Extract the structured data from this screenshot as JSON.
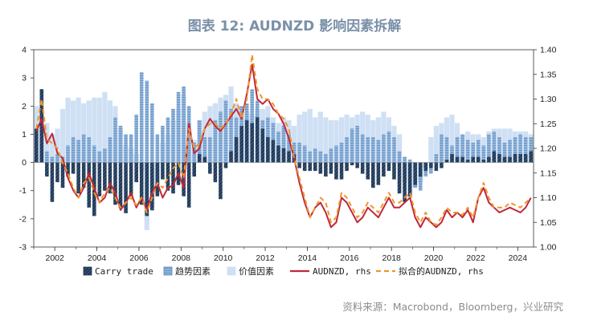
{
  "title": "图表 12: AUDNZD 影响因素拆解",
  "source": "资料来源：Macrobond，Bloomberg，兴业研究",
  "chart_data": {
    "type": "bar",
    "x_ticks": [
      "2002",
      "2004",
      "2006",
      "2008",
      "2010",
      "2012",
      "2014",
      "2016",
      "2018",
      "2020",
      "2022",
      "2024"
    ],
    "x_range": [
      2001.0,
      2024.75
    ],
    "y_left": {
      "range": [
        -3,
        4
      ],
      "ticks": [
        "-3",
        "-2",
        "-1",
        "0",
        "1",
        "2",
        "3",
        "4"
      ]
    },
    "y_right": {
      "range": [
        1.0,
        1.4
      ],
      "ticks": [
        "1.00",
        "1.05",
        "1.10",
        "1.15",
        "1.20",
        "1.25",
        "1.30",
        "1.35",
        "1.40"
      ]
    },
    "legend_position": "bottom",
    "colors": {
      "carry": "#1f3857",
      "trend": "#8eb4dc",
      "value": "#cfe0f4",
      "audnzd": "#c0283a",
      "fitted": "#f0962d"
    },
    "series": [
      {
        "name": "Carry trade",
        "type": "bar",
        "axis": "left",
        "x": [
          2001.0,
          2001.25,
          2001.5,
          2001.75,
          2002.0,
          2002.25,
          2002.5,
          2002.75,
          2003.0,
          2003.25,
          2003.5,
          2003.75,
          2004.0,
          2004.25,
          2004.5,
          2004.75,
          2005.0,
          2005.25,
          2005.5,
          2005.75,
          2006.0,
          2006.25,
          2006.5,
          2006.75,
          2007.0,
          2007.25,
          2007.5,
          2007.75,
          2008.0,
          2008.25,
          2008.5,
          2008.75,
          2009.0,
          2009.25,
          2009.5,
          2009.75,
          2010.0,
          2010.25,
          2010.5,
          2010.75,
          2011.0,
          2011.25,
          2011.5,
          2011.75,
          2012.0,
          2012.25,
          2012.5,
          2012.75,
          2013.0,
          2013.25,
          2013.5,
          2013.75,
          2014.0,
          2014.25,
          2014.5,
          2014.75,
          2015.0,
          2015.25,
          2015.5,
          2015.75,
          2016.0,
          2016.25,
          2016.5,
          2016.75,
          2017.0,
          2017.25,
          2017.5,
          2017.75,
          2018.0,
          2018.25,
          2018.5,
          2018.75,
          2019.0,
          2019.25,
          2019.5,
          2019.75,
          2020.0,
          2020.25,
          2020.5,
          2020.75,
          2021.0,
          2021.25,
          2021.5,
          2021.75,
          2022.0,
          2022.25,
          2022.5,
          2022.75,
          2023.0,
          2023.25,
          2023.5,
          2023.75,
          2024.0,
          2024.25,
          2024.5
        ],
        "values": [
          1.2,
          2.6,
          -0.5,
          -1.4,
          -0.7,
          -0.9,
          -0.5,
          -0.4,
          -1.1,
          -0.9,
          -1.6,
          -1.9,
          -1.2,
          -1.0,
          -1.1,
          -1.5,
          -1.6,
          -1.8,
          -1.2,
          -0.7,
          -1.5,
          -1.9,
          -1.7,
          -1.2,
          -0.6,
          -1.0,
          -1.1,
          -0.8,
          -1.2,
          -1.6,
          -0.5,
          0.3,
          0.2,
          -0.4,
          -0.7,
          -1.3,
          -0.2,
          0.4,
          0.9,
          1.3,
          1.5,
          1.4,
          1.6,
          1.2,
          0.9,
          0.8,
          0.6,
          0.5,
          0.4,
          0.3,
          -0.2,
          -0.3,
          -0.3,
          -0.3,
          -0.4,
          -0.5,
          -0.4,
          -0.6,
          -0.6,
          -0.3,
          -0.1,
          -0.2,
          -0.4,
          -0.6,
          -0.9,
          -0.8,
          -0.5,
          -0.3,
          -0.6,
          -1.1,
          -1.4,
          -1.2,
          -0.8,
          -0.5,
          -0.3,
          -0.2,
          -0.3,
          -0.2,
          0.1,
          0.3,
          0.2,
          0.2,
          0.1,
          0.2,
          0.2,
          0.1,
          0.2,
          0.4,
          0.3,
          0.2,
          0.2,
          0.3,
          0.3,
          0.3,
          0.4
        ]
      },
      {
        "name": "趋势因素",
        "type": "bar",
        "axis": "left",
        "x": [
          2001.0,
          2001.25,
          2001.5,
          2001.75,
          2002.0,
          2002.25,
          2002.5,
          2002.75,
          2003.0,
          2003.25,
          2003.5,
          2003.75,
          2004.0,
          2004.25,
          2004.5,
          2004.75,
          2005.0,
          2005.25,
          2005.5,
          2005.75,
          2006.0,
          2006.25,
          2006.5,
          2006.75,
          2007.0,
          2007.25,
          2007.5,
          2007.75,
          2008.0,
          2008.25,
          2008.5,
          2008.75,
          2009.0,
          2009.25,
          2009.5,
          2009.75,
          2010.0,
          2010.25,
          2010.5,
          2010.75,
          2011.0,
          2011.25,
          2011.5,
          2011.75,
          2012.0,
          2012.25,
          2012.5,
          2012.75,
          2013.0,
          2013.25,
          2013.5,
          2013.75,
          2014.0,
          2014.25,
          2014.5,
          2014.75,
          2015.0,
          2015.25,
          2015.5,
          2015.75,
          2016.0,
          2016.25,
          2016.5,
          2016.75,
          2017.0,
          2017.25,
          2017.5,
          2017.75,
          2018.0,
          2018.25,
          2018.5,
          2018.75,
          2019.0,
          2019.25,
          2019.5,
          2019.75,
          2020.0,
          2020.25,
          2020.5,
          2020.75,
          2021.0,
          2021.25,
          2021.5,
          2021.75,
          2022.0,
          2022.25,
          2022.5,
          2022.75,
          2023.0,
          2023.25,
          2023.5,
          2023.75,
          2024.0,
          2024.25,
          2024.5
        ],
        "values": [
          0.3,
          2.2,
          0.4,
          0.2,
          0.3,
          0.2,
          0.6,
          0.9,
          0.8,
          1.0,
          0.9,
          0.6,
          0.4,
          0.5,
          0.9,
          1.6,
          1.3,
          1.0,
          1.0,
          1.7,
          3.2,
          2.9,
          2.1,
          1.0,
          1.3,
          1.6,
          1.9,
          2.5,
          2.7,
          2.0,
          0.7,
          1.5,
          0.9,
          0.9,
          1.5,
          1.8,
          2.2,
          1.9,
          1.6,
          2.0,
          2.1,
          2.6,
          2.2,
          1.5,
          1.6,
          1.4,
          1.1,
          1.3,
          1.0,
          0.7,
          0.7,
          0.6,
          0.4,
          0.5,
          0.4,
          0.3,
          0.5,
          0.6,
          0.7,
          0.9,
          1.2,
          1.3,
          1.0,
          0.9,
          0.9,
          0.8,
          1.0,
          1.1,
          0.9,
          0.4,
          0.2,
          0.1,
          -0.9,
          -1.0,
          -0.5,
          -0.4,
          0.3,
          1.0,
          0.9,
          0.6,
          0.9,
          1.0,
          0.8,
          0.7,
          0.8,
          0.6,
          1.0,
          1.1,
          0.9,
          0.7,
          0.8,
          0.9,
          1.0,
          0.9,
          0.9
        ]
      },
      {
        "name": "价值因素",
        "type": "bar",
        "axis": "left",
        "x": [
          2001.0,
          2001.25,
          2001.5,
          2001.75,
          2002.0,
          2002.25,
          2002.5,
          2002.75,
          2003.0,
          2003.25,
          2003.5,
          2003.75,
          2004.0,
          2004.25,
          2004.5,
          2004.75,
          2005.0,
          2005.25,
          2005.5,
          2005.75,
          2006.0,
          2006.25,
          2006.5,
          2006.75,
          2007.0,
          2007.25,
          2007.5,
          2007.75,
          2008.0,
          2008.25,
          2008.5,
          2008.75,
          2009.0,
          2009.25,
          2009.5,
          2009.75,
          2010.0,
          2010.25,
          2010.5,
          2010.75,
          2011.0,
          2011.25,
          2011.5,
          2011.75,
          2012.0,
          2012.25,
          2012.5,
          2012.75,
          2013.0,
          2013.25,
          2013.5,
          2013.75,
          2014.0,
          2014.25,
          2014.5,
          2014.75,
          2015.0,
          2015.25,
          2015.5,
          2015.75,
          2016.0,
          2016.25,
          2016.5,
          2016.75,
          2017.0,
          2017.25,
          2017.5,
          2017.75,
          2018.0,
          2018.25,
          2018.5,
          2018.75,
          2019.0,
          2019.25,
          2019.5,
          2019.75,
          2020.0,
          2020.25,
          2020.5,
          2020.75,
          2021.0,
          2021.25,
          2021.5,
          2021.75,
          2022.0,
          2022.25,
          2022.5,
          2022.75,
          2023.0,
          2023.25,
          2023.5,
          2023.75,
          2024.0,
          2024.25,
          2024.5
        ],
        "values": [
          2.0,
          1.7,
          1.4,
          1.0,
          1.2,
          1.9,
          2.3,
          2.2,
          2.3,
          2.1,
          2.2,
          2.3,
          2.3,
          2.5,
          2.2,
          2.0,
          1.2,
          0.6,
          0.5,
          0.3,
          -0.3,
          -2.4,
          -1.6,
          -0.8,
          0.7,
          1.0,
          1.5,
          1.9,
          2.4,
          1.4,
          0.8,
          1.5,
          1.8,
          2.0,
          2.1,
          2.3,
          2.4,
          2.7,
          2.1,
          2.0,
          1.8,
          1.7,
          1.9,
          1.9,
          2.0,
          1.6,
          1.4,
          1.6,
          1.5,
          1.3,
          1.7,
          1.8,
          1.9,
          1.6,
          1.8,
          1.6,
          1.5,
          1.5,
          1.6,
          1.7,
          1.6,
          1.7,
          1.8,
          1.7,
          1.5,
          1.6,
          1.8,
          1.6,
          1.3,
          1.0,
          -0.7,
          -1.3,
          -0.9,
          -0.7,
          -0.2,
          0.9,
          1.3,
          1.4,
          1.6,
          1.7,
          1.4,
          1.0,
          1.1,
          1.0,
          1.0,
          0.9,
          1.1,
          1.2,
          1.2,
          1.2,
          1.2,
          1.1,
          1.1,
          1.1,
          1.0
        ]
      },
      {
        "name": "AUDNZD, rhs",
        "type": "line",
        "axis": "right",
        "x": [
          2001.0,
          2001.25,
          2001.5,
          2001.75,
          2002.0,
          2002.25,
          2002.5,
          2002.75,
          2003.0,
          2003.25,
          2003.5,
          2003.75,
          2004.0,
          2004.25,
          2004.5,
          2004.75,
          2005.0,
          2005.25,
          2005.5,
          2005.75,
          2006.0,
          2006.25,
          2006.5,
          2006.75,
          2007.0,
          2007.25,
          2007.5,
          2007.75,
          2008.0,
          2008.25,
          2008.5,
          2008.75,
          2009.0,
          2009.25,
          2009.5,
          2009.75,
          2010.0,
          2010.25,
          2010.5,
          2010.75,
          2011.0,
          2011.25,
          2011.5,
          2011.75,
          2012.0,
          2012.25,
          2012.5,
          2012.75,
          2013.0,
          2013.25,
          2013.5,
          2013.75,
          2014.0,
          2014.25,
          2014.5,
          2014.75,
          2015.0,
          2015.25,
          2015.5,
          2015.75,
          2016.0,
          2016.25,
          2016.5,
          2016.75,
          2017.0,
          2017.25,
          2017.5,
          2017.75,
          2018.0,
          2018.25,
          2018.5,
          2018.75,
          2019.0,
          2019.25,
          2019.5,
          2019.75,
          2020.0,
          2020.25,
          2020.5,
          2020.75,
          2021.0,
          2021.25,
          2021.5,
          2021.75,
          2022.0,
          2022.25,
          2022.5,
          2022.75,
          2023.0,
          2023.25,
          2023.5,
          2023.75,
          2024.0,
          2024.25,
          2024.5
        ],
        "values": [
          1.235,
          1.26,
          1.21,
          1.23,
          1.19,
          1.18,
          1.14,
          1.115,
          1.1,
          1.12,
          1.15,
          1.12,
          1.09,
          1.1,
          1.13,
          1.11,
          1.075,
          1.09,
          1.11,
          1.08,
          1.1,
          1.075,
          1.11,
          1.13,
          1.1,
          1.12,
          1.125,
          1.15,
          1.12,
          1.25,
          1.19,
          1.2,
          1.24,
          1.26,
          1.245,
          1.235,
          1.25,
          1.265,
          1.28,
          1.26,
          1.31,
          1.37,
          1.3,
          1.29,
          1.3,
          1.28,
          1.27,
          1.25,
          1.22,
          1.18,
          1.13,
          1.09,
          1.06,
          1.08,
          1.09,
          1.07,
          1.04,
          1.05,
          1.1,
          1.09,
          1.07,
          1.05,
          1.06,
          1.08,
          1.07,
          1.06,
          1.08,
          1.1,
          1.08,
          1.08,
          1.09,
          1.1,
          1.06,
          1.04,
          1.06,
          1.05,
          1.04,
          1.05,
          1.075,
          1.06,
          1.07,
          1.06,
          1.075,
          1.05,
          1.1,
          1.12,
          1.09,
          1.08,
          1.07,
          1.075,
          1.08,
          1.075,
          1.07,
          1.08,
          1.1
        ]
      },
      {
        "name": "拟合的AUDNZD, rhs",
        "type": "line",
        "axis": "right",
        "dashed": true,
        "x": [
          2001.0,
          2001.25,
          2001.5,
          2001.75,
          2002.0,
          2002.25,
          2002.5,
          2002.75,
          2003.0,
          2003.25,
          2003.5,
          2003.75,
          2004.0,
          2004.25,
          2004.5,
          2004.75,
          2005.0,
          2005.25,
          2005.5,
          2005.75,
          2006.0,
          2006.25,
          2006.5,
          2006.75,
          2007.0,
          2007.25,
          2007.5,
          2007.75,
          2008.0,
          2008.25,
          2008.5,
          2008.75,
          2009.0,
          2009.25,
          2009.5,
          2009.75,
          2010.0,
          2010.25,
          2010.5,
          2010.75,
          2011.0,
          2011.25,
          2011.5,
          2011.75,
          2012.0,
          2012.25,
          2012.5,
          2012.75,
          2013.0,
          2013.25,
          2013.5,
          2013.75,
          2014.0,
          2014.25,
          2014.5,
          2014.75,
          2015.0,
          2015.25,
          2015.5,
          2015.75,
          2016.0,
          2016.25,
          2016.5,
          2016.75,
          2017.0,
          2017.25,
          2017.5,
          2017.75,
          2018.0,
          2018.25,
          2018.5,
          2018.75,
          2019.0,
          2019.25,
          2019.5,
          2019.75,
          2020.0,
          2020.25,
          2020.5,
          2020.75,
          2021.0,
          2021.25,
          2021.5,
          2021.75,
          2022.0,
          2022.25,
          2022.5,
          2022.75,
          2023.0,
          2023.25,
          2023.5,
          2023.75,
          2024.0,
          2024.25,
          2024.5
        ],
        "values": [
          1.24,
          1.3,
          1.22,
          1.21,
          1.2,
          1.17,
          1.15,
          1.12,
          1.1,
          1.13,
          1.14,
          1.11,
          1.09,
          1.11,
          1.12,
          1.1,
          1.08,
          1.09,
          1.1,
          1.085,
          1.1,
          1.07,
          1.1,
          1.13,
          1.12,
          1.14,
          1.16,
          1.17,
          1.14,
          1.24,
          1.2,
          1.21,
          1.24,
          1.25,
          1.25,
          1.24,
          1.25,
          1.27,
          1.3,
          1.26,
          1.3,
          1.39,
          1.32,
          1.3,
          1.3,
          1.29,
          1.27,
          1.26,
          1.24,
          1.18,
          1.14,
          1.1,
          1.06,
          1.08,
          1.1,
          1.09,
          1.05,
          1.06,
          1.11,
          1.1,
          1.08,
          1.06,
          1.07,
          1.09,
          1.08,
          1.07,
          1.09,
          1.11,
          1.09,
          1.09,
          1.1,
          1.11,
          1.07,
          1.05,
          1.07,
          1.05,
          1.045,
          1.06,
          1.08,
          1.07,
          1.07,
          1.065,
          1.08,
          1.06,
          1.1,
          1.13,
          1.1,
          1.08,
          1.08,
          1.08,
          1.09,
          1.085,
          1.08,
          1.09,
          1.1
        ]
      }
    ]
  }
}
